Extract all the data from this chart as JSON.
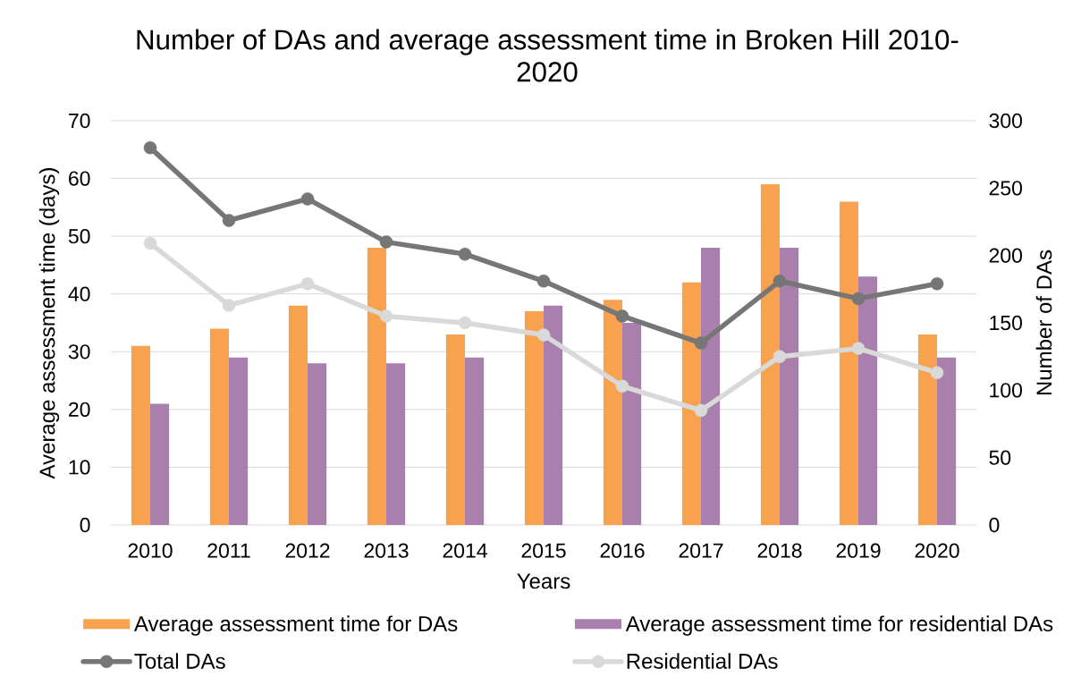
{
  "chart_data": {
    "type": "bar",
    "title": "Number of DAs and average assessment time in Broken Hill 2010-2020",
    "xlabel": "Years",
    "ylabel": "Average assessment time (days)",
    "y2label": "Number of DAs",
    "categories": [
      "2010",
      "2011",
      "2012",
      "2013",
      "2014",
      "2015",
      "2016",
      "2017",
      "2018",
      "2019",
      "2020"
    ],
    "series": [
      {
        "name": "Average assessment time for DAs",
        "color": "#f8a14e",
        "values": [
          31,
          34,
          38,
          48,
          33,
          37,
          39,
          42,
          59,
          56,
          33
        ]
      },
      {
        "name": "Average assessment time for residential DAs",
        "color": "#a87fad",
        "values": [
          21,
          29,
          28,
          28,
          29,
          38,
          35,
          48,
          48,
          43,
          29
        ]
      },
      {
        "name": "Total DAs",
        "type": "line",
        "axis": "y2",
        "color": "#767676",
        "values": [
          280,
          226,
          242,
          210,
          201,
          181,
          155,
          135,
          181,
          168,
          179
        ]
      },
      {
        "name": "Residential DAs",
        "type": "line",
        "axis": "y2",
        "color": "#d9d9d9",
        "values": [
          209,
          163,
          179,
          155,
          150,
          141,
          103,
          85,
          125,
          131,
          113
        ]
      }
    ],
    "ylim": [
      0,
      70
    ],
    "yticks": [
      0,
      10,
      20,
      30,
      40,
      50,
      60,
      70
    ],
    "y2lim": [
      0,
      300
    ],
    "y2ticks": [
      0,
      50,
      100,
      150,
      200,
      250,
      300
    ],
    "grid": "y",
    "legend": "bottom",
    "marker": "circle"
  }
}
